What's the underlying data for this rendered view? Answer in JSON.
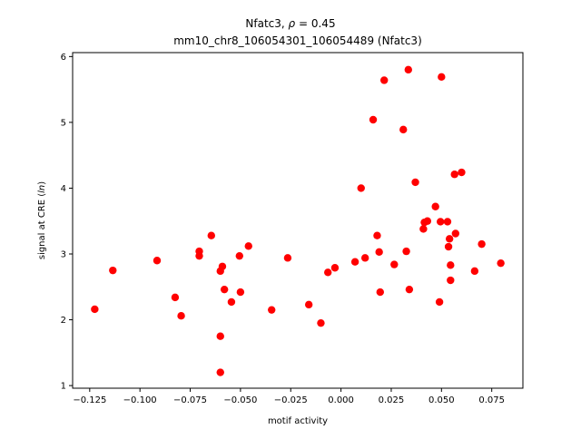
{
  "chart_data": {
    "type": "scatter",
    "title_line1_main": "Nfatc3, ",
    "title_line1_rho": "ρ",
    "title_line1_value": " = 0.45",
    "title_line2": "mm10_chr8_106054301_106054489 (Nfatc3)",
    "xlabel": "motif activity",
    "ylabel_main": "signal at CRE (",
    "ylabel_italic": "ln",
    "ylabel_end": ")",
    "xlim": [
      -0.1335,
      0.0905
    ],
    "ylim": [
      0.96,
      6.06
    ],
    "xticks": [
      -0.125,
      -0.1,
      -0.075,
      -0.05,
      -0.025,
      0.0,
      0.025,
      0.05,
      0.075
    ],
    "xtick_labels": [
      "−0.125",
      "−0.100",
      "−0.075",
      "−0.050",
      "−0.025",
      "0.000",
      "0.025",
      "0.050",
      "0.075"
    ],
    "yticks": [
      1,
      2,
      3,
      4,
      5,
      6
    ],
    "ytick_labels": [
      "1",
      "2",
      "3",
      "4",
      "5",
      "6"
    ],
    "grid": false,
    "point_color": "#ff0000",
    "points": [
      [
        -0.1225,
        2.16
      ],
      [
        -0.1135,
        2.75
      ],
      [
        -0.0915,
        2.9
      ],
      [
        -0.0825,
        2.34
      ],
      [
        -0.0795,
        2.06
      ],
      [
        -0.0705,
        3.04
      ],
      [
        -0.0705,
        2.97
      ],
      [
        -0.0645,
        3.28
      ],
      [
        -0.06,
        2.74
      ],
      [
        -0.059,
        2.81
      ],
      [
        -0.058,
        2.46
      ],
      [
        -0.06,
        1.75
      ],
      [
        -0.06,
        1.2
      ],
      [
        -0.0545,
        2.27
      ],
      [
        -0.0505,
        2.97
      ],
      [
        -0.05,
        2.42
      ],
      [
        -0.046,
        3.12
      ],
      [
        -0.0345,
        2.15
      ],
      [
        -0.0265,
        2.94
      ],
      [
        -0.016,
        2.23
      ],
      [
        -0.01,
        1.95
      ],
      [
        -0.0065,
        2.72
      ],
      [
        -0.003,
        2.79
      ],
      [
        0.007,
        2.88
      ],
      [
        0.01,
        4.0
      ],
      [
        0.012,
        2.94
      ],
      [
        0.016,
        5.04
      ],
      [
        0.018,
        3.28
      ],
      [
        0.019,
        3.03
      ],
      [
        0.0195,
        2.42
      ],
      [
        0.0215,
        5.64
      ],
      [
        0.0265,
        2.84
      ],
      [
        0.031,
        4.89
      ],
      [
        0.0325,
        3.04
      ],
      [
        0.0335,
        5.8
      ],
      [
        0.034,
        2.46
      ],
      [
        0.037,
        4.09
      ],
      [
        0.041,
        3.38
      ],
      [
        0.0415,
        3.48
      ],
      [
        0.043,
        3.5
      ],
      [
        0.047,
        3.72
      ],
      [
        0.049,
        2.27
      ],
      [
        0.05,
        5.69
      ],
      [
        0.0495,
        3.49
      ],
      [
        0.053,
        3.49
      ],
      [
        0.0535,
        3.11
      ],
      [
        0.054,
        3.23
      ],
      [
        0.0545,
        2.83
      ],
      [
        0.0545,
        2.6
      ],
      [
        0.0565,
        4.21
      ],
      [
        0.057,
        3.31
      ],
      [
        0.06,
        4.24
      ],
      [
        0.0665,
        2.74
      ],
      [
        0.07,
        3.15
      ],
      [
        0.0795,
        2.86
      ]
    ]
  }
}
